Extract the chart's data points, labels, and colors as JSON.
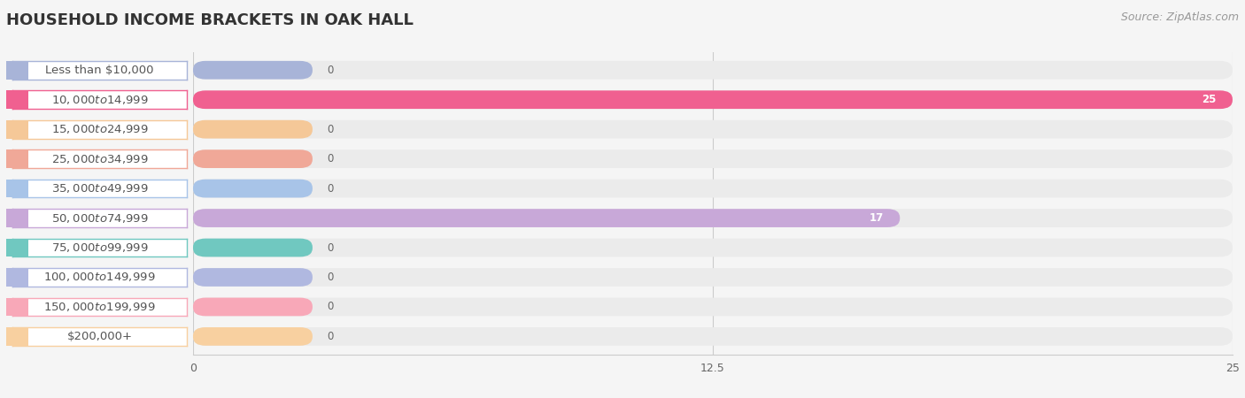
{
  "title": "HOUSEHOLD INCOME BRACKETS IN OAK HALL",
  "source": "Source: ZipAtlas.com",
  "categories": [
    "Less than $10,000",
    "$10,000 to $14,999",
    "$15,000 to $24,999",
    "$25,000 to $34,999",
    "$35,000 to $49,999",
    "$50,000 to $74,999",
    "$75,000 to $99,999",
    "$100,000 to $149,999",
    "$150,000 to $199,999",
    "$200,000+"
  ],
  "values": [
    0,
    25,
    0,
    0,
    0,
    17,
    0,
    0,
    0,
    0
  ],
  "bar_colors": [
    "#a8b4d8",
    "#f06090",
    "#f5c898",
    "#f0a898",
    "#a8c4e8",
    "#c8a8d8",
    "#70c8c0",
    "#b0b8e0",
    "#f8a8b8",
    "#f8d0a0"
  ],
  "xlim": [
    0,
    25
  ],
  "xticks": [
    0,
    12.5,
    25
  ],
  "background_color": "#f5f5f5",
  "row_bg_color": "#ebebeb",
  "title_fontsize": 13,
  "source_fontsize": 9,
  "label_fontsize": 9.5,
  "value_fontsize": 8.5
}
